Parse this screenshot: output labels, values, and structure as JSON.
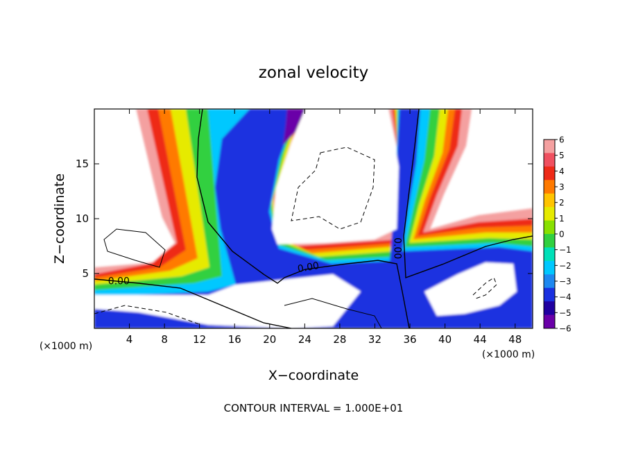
{
  "chart_data": {
    "type": "heatmap",
    "title": "zonal velocity",
    "xlabel": "X−coordinate",
    "ylabel": "Z−coordinate",
    "x_unit": "(×1000 m)",
    "x_unit_right": "(×1000 m)",
    "xlim": [
      0,
      50
    ],
    "ylim": [
      0,
      20
    ],
    "x_ticks": [
      4,
      8,
      12,
      16,
      20,
      24,
      28,
      32,
      36,
      40,
      44,
      48
    ],
    "y_ticks": [
      5,
      10,
      15
    ],
    "footer": "CONTOUR INTERVAL = 1.000E+01",
    "colorbar": {
      "levels": [
        6,
        5,
        4,
        3,
        2,
        1,
        0,
        -1,
        -2,
        -3,
        -4,
        -5,
        -6
      ],
      "labels": [
        "6",
        "5",
        "4",
        "3",
        "2",
        "1",
        "0",
        "−1",
        "−2",
        "−3",
        "−4",
        "−5",
        "−6"
      ],
      "colors": [
        "#f4a0a0",
        "#f05060",
        "#ee2a18",
        "#ff7a00",
        "#ffc400",
        "#e6ea00",
        "#88e000",
        "#30d040",
        "#00e0b8",
        "#00c8ff",
        "#1e88f0",
        "#1a30e0",
        "#2000a0",
        "#6a00a8"
      ]
    },
    "contour_labels": [
      {
        "text": "0.00",
        "x": 2.8,
        "z": 4.35,
        "angle": 0
      },
      {
        "text": "0.00",
        "x": 24.4,
        "z": 5.6,
        "angle": -10
      },
      {
        "text": "0.00",
        "x": 34.6,
        "z": 7.3,
        "angle": 90
      }
    ]
  }
}
